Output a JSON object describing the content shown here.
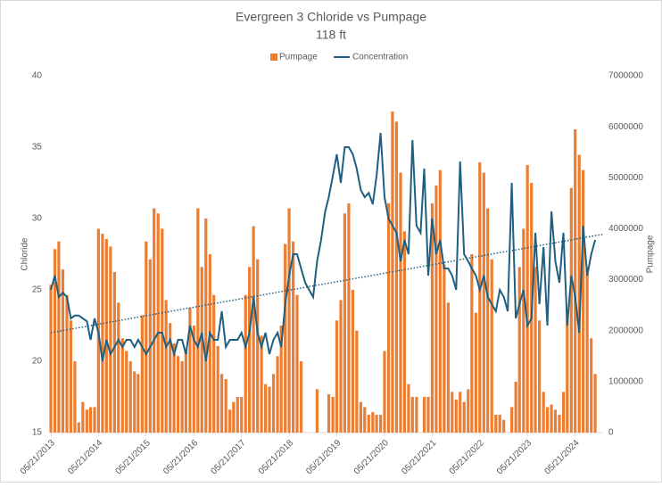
{
  "chart_data": {
    "type": "bar-line",
    "title": "Evergreen 3 Chloride vs Pumpage",
    "subtitle": "118 ft",
    "ylabel": "Chloride",
    "y2label": "Pumpage",
    "ylim": [
      15,
      40
    ],
    "yticks": [
      15,
      20,
      25,
      30,
      35,
      40
    ],
    "y2lim": [
      0,
      7000000
    ],
    "y2ticks": [
      0,
      1000000,
      2000000,
      3000000,
      4000000,
      5000000,
      6000000,
      7000000
    ],
    "xlim": [
      "05/21/2013",
      "12/21/2024"
    ],
    "xticks": [
      "05/21/2013",
      "05/21/2014",
      "05/21/2015",
      "05/21/2016",
      "05/21/2017",
      "05/21/2018",
      "05/21/2019",
      "05/21/2020",
      "05/21/2021",
      "05/21/2022",
      "05/21/2023",
      "05/21/2024"
    ],
    "legend": "top",
    "trendline": true,
    "x": [
      "05/21/2013",
      "06/21/2013",
      "07/21/2013",
      "08/21/2013",
      "09/21/2013",
      "10/21/2013",
      "11/21/2013",
      "12/21/2013",
      "01/21/2014",
      "02/21/2014",
      "03/21/2014",
      "04/21/2014",
      "05/21/2014",
      "06/21/2014",
      "07/21/2014",
      "08/21/2014",
      "09/21/2014",
      "10/21/2014",
      "11/21/2014",
      "12/21/2014",
      "01/21/2015",
      "02/21/2015",
      "03/21/2015",
      "04/21/2015",
      "05/21/2015",
      "06/21/2015",
      "07/21/2015",
      "08/21/2015",
      "09/21/2015",
      "10/21/2015",
      "11/21/2015",
      "12/21/2015",
      "01/21/2016",
      "02/21/2016",
      "03/21/2016",
      "04/21/2016",
      "05/21/2016",
      "06/21/2016",
      "07/21/2016",
      "08/21/2016",
      "09/21/2016",
      "10/21/2016",
      "11/21/2016",
      "12/21/2016",
      "01/21/2017",
      "02/21/2017",
      "03/21/2017",
      "04/21/2017",
      "05/21/2017",
      "06/21/2017",
      "07/21/2017",
      "08/21/2017",
      "09/21/2017",
      "10/21/2017",
      "11/21/2017",
      "12/21/2017",
      "01/21/2018",
      "02/21/2018",
      "03/21/2018",
      "04/21/2018",
      "05/21/2018",
      "06/21/2018",
      "07/21/2018",
      "08/21/2018",
      "09/21/2018",
      "10/21/2018",
      "11/21/2018",
      "12/21/2018",
      "01/21/2019",
      "02/21/2019",
      "03/21/2019",
      "04/21/2019",
      "05/21/2019",
      "06/21/2019",
      "07/21/2019",
      "08/21/2019",
      "09/21/2019",
      "10/21/2019",
      "11/21/2019",
      "12/21/2019",
      "01/21/2020",
      "02/21/2020",
      "03/21/2020",
      "04/21/2020",
      "05/21/2020",
      "06/21/2020",
      "07/21/2020",
      "08/21/2020",
      "09/21/2020",
      "10/21/2020",
      "11/21/2020",
      "12/21/2020",
      "01/21/2021",
      "02/21/2021",
      "03/21/2021",
      "04/21/2021",
      "05/21/2021",
      "06/21/2021",
      "07/21/2021",
      "08/21/2021",
      "09/21/2021",
      "10/21/2021",
      "11/21/2021",
      "12/21/2021",
      "01/21/2022",
      "02/21/2022",
      "03/21/2022",
      "04/21/2022",
      "05/21/2022",
      "06/21/2022",
      "07/21/2022",
      "08/21/2022",
      "09/21/2022",
      "10/21/2022",
      "11/21/2022",
      "12/21/2022",
      "01/21/2023",
      "02/21/2023",
      "03/21/2023",
      "04/21/2023",
      "05/21/2023",
      "06/21/2023",
      "07/21/2023",
      "08/21/2023",
      "09/21/2023",
      "10/21/2023",
      "11/21/2023",
      "12/21/2023",
      "01/21/2024",
      "02/21/2024",
      "03/21/2024",
      "04/21/2024",
      "05/21/2024",
      "06/21/2024",
      "07/21/2024",
      "08/21/2024",
      "09/21/2024",
      "10/21/2024"
    ],
    "series": [
      {
        "name": "Pumpage",
        "type": "bar",
        "axis": "y2",
        "color": "#ED7D31",
        "values": [
          2900000,
          3600000,
          3750000,
          3200000,
          2700000,
          2200000,
          1400000,
          200000,
          600000,
          450000,
          500000,
          500000,
          4000000,
          3900000,
          3800000,
          3650000,
          3150000,
          2550000,
          1850000,
          1600000,
          1400000,
          1200000,
          1150000,
          2300000,
          3750000,
          3400000,
          4400000,
          4300000,
          4000000,
          2600000,
          2150000,
          1750000,
          1500000,
          1400000,
          1600000,
          2450000,
          2100000,
          4400000,
          3250000,
          4200000,
          3500000,
          2700000,
          1700000,
          1150000,
          1050000,
          450000,
          600000,
          700000,
          700000,
          2700000,
          3250000,
          4050000,
          3400000,
          1900000,
          950000,
          900000,
          1150000,
          1500000,
          2100000,
          3700000,
          4400000,
          3750000,
          2700000,
          1400000,
          0,
          0,
          0,
          850000,
          0,
          0,
          750000,
          700000,
          2200000,
          2600000,
          4300000,
          4500000,
          2800000,
          2000000,
          600000,
          500000,
          350000,
          400000,
          350000,
          350000,
          1600000,
          4500000,
          6300000,
          6100000,
          5100000,
          3950000,
          950000,
          700000,
          700000,
          0,
          700000,
          700000,
          4500000,
          4850000,
          5150000,
          3300000,
          2550000,
          800000,
          650000,
          800000,
          600000,
          850000,
          3500000,
          2350000,
          5300000,
          5100000,
          4400000,
          3400000,
          350000,
          350000,
          250000,
          0,
          500000,
          1000000,
          3250000,
          4000000,
          5250000,
          4900000,
          3250000,
          2200000,
          800000,
          500000,
          550000,
          450000,
          350000,
          800000,
          2300000,
          4800000,
          5950000,
          5450000,
          5150000,
          3250000,
          1850000,
          1150000
        ]
      },
      {
        "name": "Concentration",
        "type": "line",
        "color": "#1F5F7F",
        "values": [
          25.0,
          26.0,
          24.5,
          24.8,
          24.5,
          23.0,
          23.2,
          23.2,
          23.0,
          22.8,
          21.5,
          23.0,
          22.0,
          20.0,
          21.5,
          20.5,
          21.0,
          21.5,
          21.0,
          21.5,
          21.5,
          21.0,
          21.5,
          21.0,
          20.5,
          21.0,
          21.5,
          22.0,
          22.0,
          21.0,
          21.5,
          20.5,
          21.5,
          21.5,
          20.5,
          22.5,
          21.5,
          21.0,
          22.0,
          20.0,
          22.0,
          21.5,
          21.5,
          23.5,
          21.0,
          21.5,
          21.5,
          21.5,
          22.0,
          21.0,
          22.0,
          24.5,
          22.0,
          21.0,
          22.0,
          20.5,
          21.5,
          22.0,
          21.0,
          24.0,
          26.0,
          27.5,
          27.5,
          26.5,
          25.5,
          25.0,
          24.5,
          27.0,
          28.5,
          30.5,
          31.5,
          33.0,
          34.5,
          32.5,
          35.0,
          35.0,
          34.5,
          33.5,
          32.0,
          31.5,
          31.8,
          31.0,
          33.0,
          36.0,
          31.5,
          30.0,
          29.5,
          29.0,
          27.0,
          28.5,
          27.5,
          35.5,
          29.5,
          29.0,
          33.5,
          26.0,
          30.0,
          27.5,
          28.5,
          26.5,
          26.5,
          26.0,
          25.0,
          34.0,
          27.5,
          27.0,
          26.5,
          26.0,
          25.0,
          26.0,
          24.5,
          24.0,
          23.5,
          25.0,
          24.5,
          23.5,
          32.5,
          23.0,
          24.0,
          25.0,
          22.5,
          23.0,
          29.0,
          24.0,
          28.0,
          22.5,
          30.5,
          27.0,
          25.5,
          29.0,
          22.5,
          26.0,
          24.5,
          22.0,
          29.5,
          26.0,
          27.5,
          28.5
        ]
      }
    ]
  }
}
